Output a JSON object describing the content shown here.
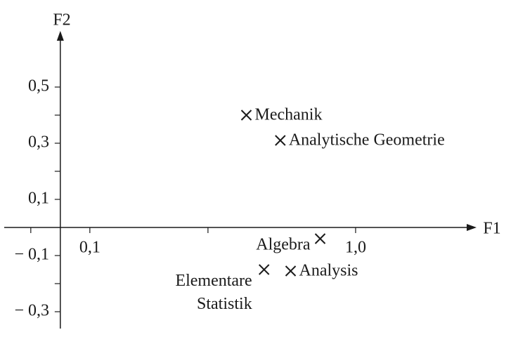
{
  "chart_data": {
    "type": "scatter",
    "x_label": "F1",
    "y_label": "F2",
    "xlim": [
      -0.19,
      1.4
    ],
    "ylim": [
      -0.36,
      0.69
    ],
    "xticks": [
      {
        "value": 0.1,
        "label": "0,1"
      },
      {
        "value": 1.0,
        "label": "1,0"
      }
    ],
    "x_minor_ticks": [
      -0.1,
      0.5
    ],
    "yticks": [
      {
        "value": 0.5,
        "label": "0,5"
      },
      {
        "value": 0.3,
        "label": "0,3"
      },
      {
        "value": 0.1,
        "label": "0,1"
      },
      {
        "value": -0.1,
        "label": "− 0,1"
      },
      {
        "value": -0.3,
        "label": "− 0,3"
      }
    ],
    "y_minor_ticks": [
      0.4,
      0.2,
      -0.2
    ],
    "color": "#1a1a1a",
    "points": [
      {
        "label": "Mechanik",
        "x": 0.63,
        "y": 0.4
      },
      {
        "label": "Analytische Geometrie",
        "x": 0.745,
        "y": 0.31
      },
      {
        "label": "Algebra",
        "x": 0.88,
        "y": -0.04
      },
      {
        "label": "Elementare Statistik",
        "x": 0.69,
        "y": -0.15
      },
      {
        "label": "Analysis",
        "x": 0.78,
        "y": -0.155
      }
    ]
  }
}
